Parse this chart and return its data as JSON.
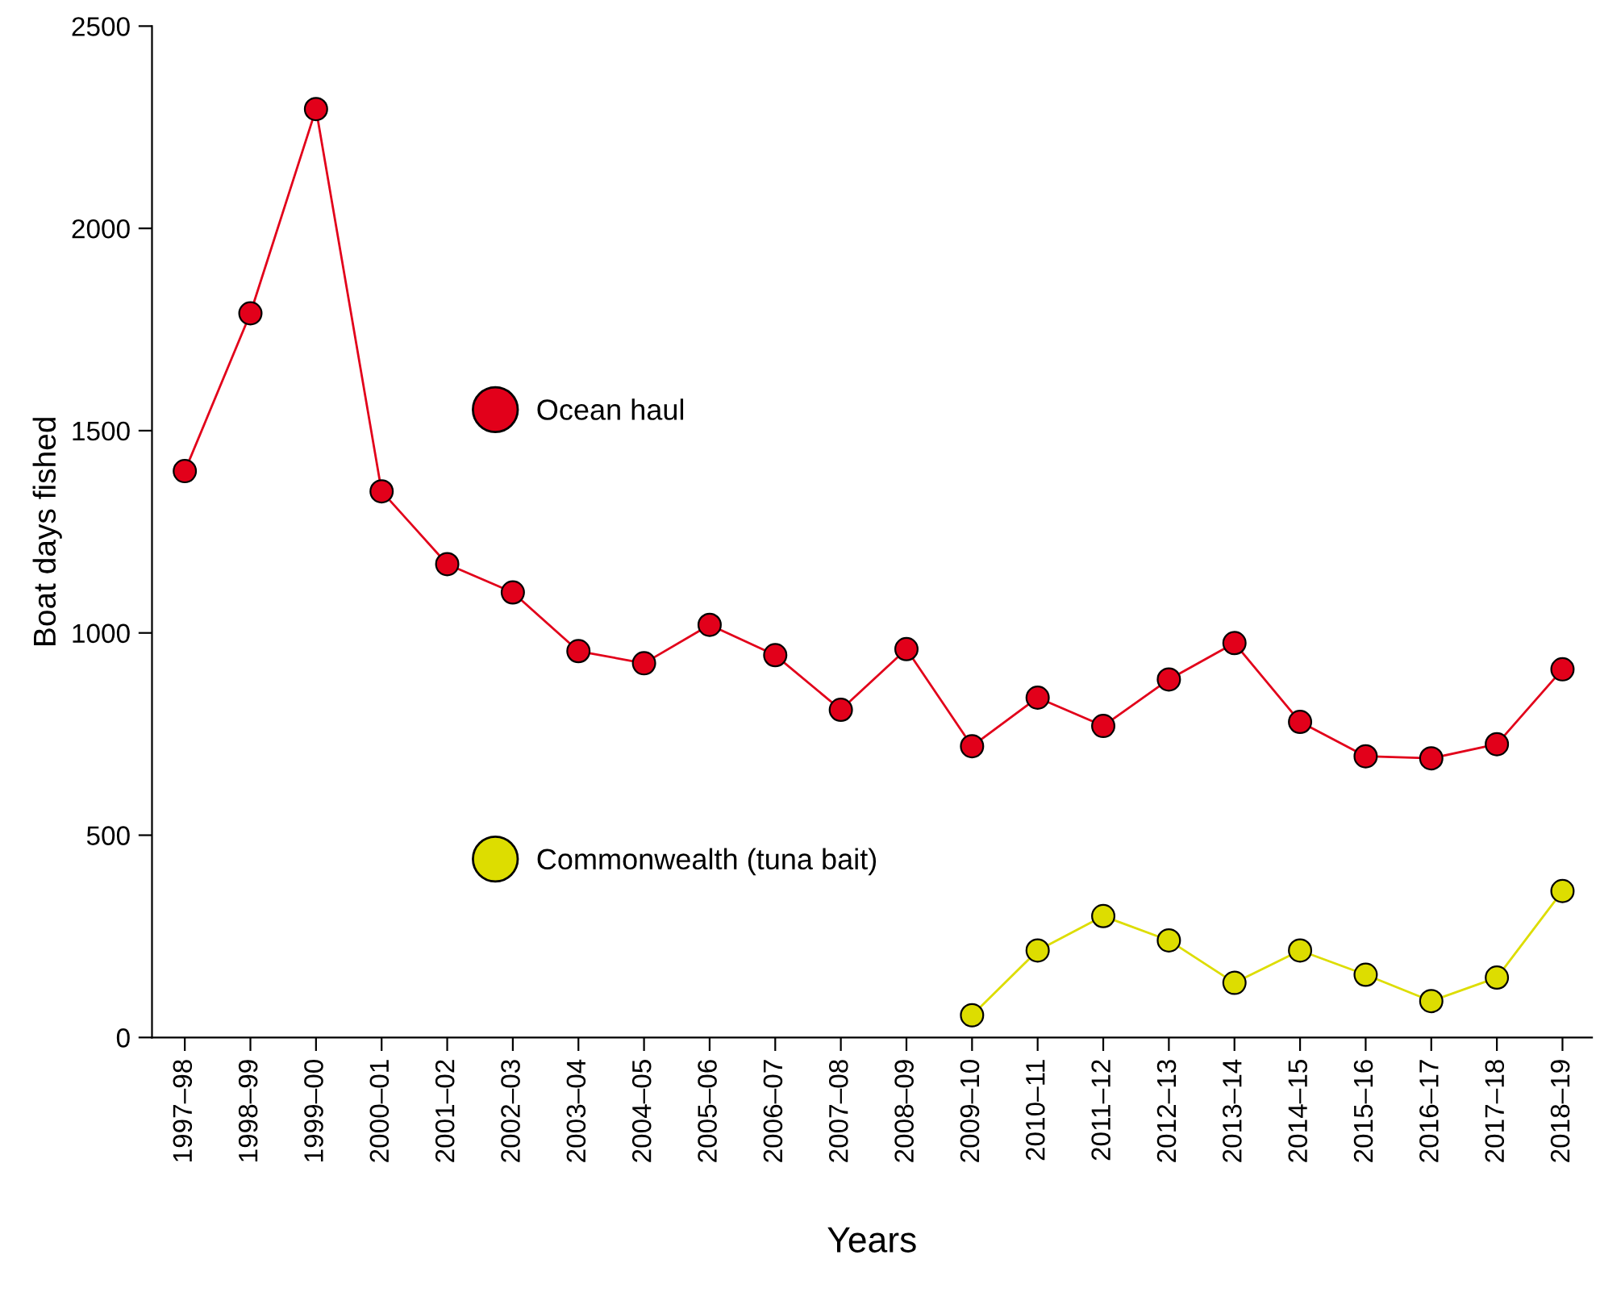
{
  "chart_data": {
    "type": "line",
    "xlabel": "Years",
    "ylabel": "Boat days fished",
    "categories": [
      "1997–98",
      "1998–99",
      "1999–00",
      "2000–01",
      "2001–02",
      "2002–03",
      "2003–04",
      "2004–05",
      "2005–06",
      "2006–07",
      "2007–08",
      "2008–09",
      "2009–10",
      "2010–11",
      "2011–12",
      "2012–13",
      "2013–14",
      "2014–15",
      "2015–16",
      "2016–17",
      "2017–18",
      "2018–19"
    ],
    "series": [
      {
        "name": "Ocean haul",
        "color": "#e2001a",
        "values": [
          1400,
          1790,
          2295,
          1350,
          1170,
          1100,
          955,
          925,
          1020,
          945,
          810,
          960,
          720,
          840,
          770,
          885,
          975,
          780,
          695,
          690,
          725,
          910
        ]
      },
      {
        "name": "Commonwealth (tuna bait)",
        "color": "#dddd00",
        "values": [
          null,
          null,
          null,
          null,
          null,
          null,
          null,
          null,
          null,
          null,
          null,
          null,
          55,
          215,
          300,
          240,
          135,
          215,
          155,
          90,
          148,
          362
        ]
      }
    ],
    "ylim": [
      0,
      2500
    ],
    "yticks": [
      0,
      500,
      1000,
      1500,
      2000,
      2500
    ],
    "marker": "circle",
    "line_style": "solid",
    "grid": false,
    "legend": "center left"
  }
}
